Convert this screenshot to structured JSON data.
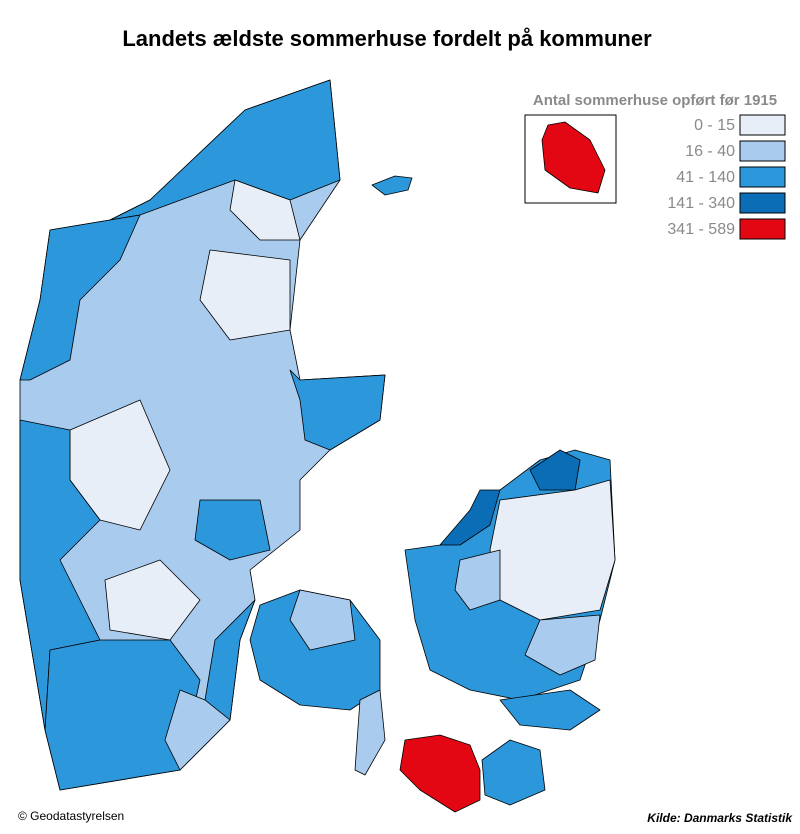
{
  "title": "Landets ældste sommerhuse fordelt på kommuner",
  "legend": {
    "title": "Antal sommerhuse opført før 1915",
    "items": [
      {
        "label": "0 - 15",
        "color": "#e8eef8"
      },
      {
        "label": "16 - 40",
        "color": "#a9cbee"
      },
      {
        "label": "41 - 140",
        "color": "#2c97da"
      },
      {
        "label": "141 - 340",
        "color": "#0b6db6"
      },
      {
        "label": "341 - 589",
        "color": "#e30613"
      }
    ]
  },
  "credit": "© Geodatastyrelsen",
  "source": "Kilde: Danmarks Statistik"
}
